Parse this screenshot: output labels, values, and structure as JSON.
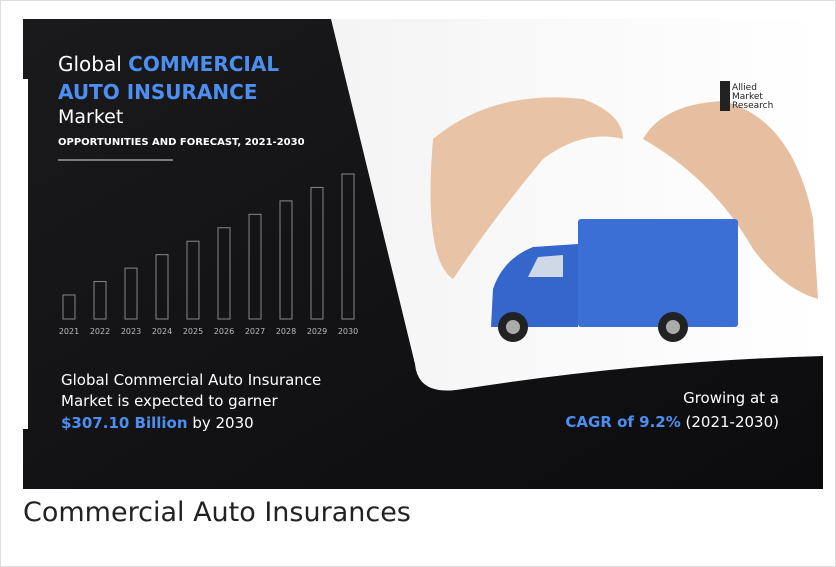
{
  "infographic": {
    "title": {
      "prefix": "Global",
      "highlight": [
        "COMMERCIAL",
        "AUTO INSURANCE"
      ],
      "suffix": "Market"
    },
    "subtitle": "OPPORTUNITIES AND FORECAST, 2021-2030",
    "years": [
      "2021",
      "2022",
      "2023",
      "2024",
      "2025",
      "2026",
      "2027",
      "2028",
      "2029",
      "2030"
    ],
    "summary": {
      "lines": [
        "Global Commercial Auto Insurance",
        "Market is expected to garner"
      ],
      "amount": "$307.10 Billion",
      "by": "by 2030"
    },
    "logo": [
      "Allied",
      "Market",
      "Research"
    ],
    "growth": {
      "line": "Growing at a",
      "cagr": "CAGR of 9.2%",
      "period": "(2021-2030)"
    }
  },
  "caption": "Commercial Auto Insurances"
}
